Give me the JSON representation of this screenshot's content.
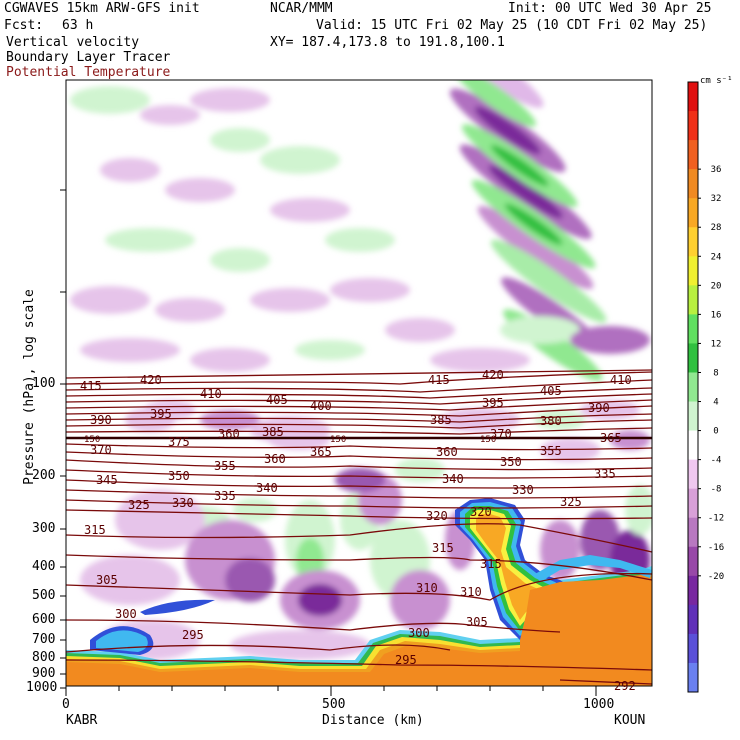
{
  "header": {
    "model": "CGWAVES 15km ARW-GFS init",
    "org": "NCAR/MMM",
    "init": "Init: 00 UTC Wed 30 Apr 25",
    "fcst_label": "Fcst:",
    "fcst_value": "63 h",
    "valid": "Valid: 15 UTC Fri 02 May 25 (10 CDT Fri 02 May 25)",
    "field1": "Vertical velocity",
    "field2": "Boundary Layer Tracer",
    "field3": "Potential Temperature",
    "xy": "XY= 187.4,173.8 to 191.8,100.1"
  },
  "colors": {
    "theta": "#7a0a0a",
    "field3_text": "#8b1a1a"
  },
  "chart_data": {
    "type": "heatmap",
    "title": "Vertical velocity",
    "xlabel": "Distance (km)",
    "ylabel": "Pressure (hPa), log scale",
    "x_ticks": [
      0,
      500,
      1000
    ],
    "xlim": [
      0,
      1100
    ],
    "y_ticks": [
      100,
      200,
      300,
      400,
      500,
      600,
      700,
      800,
      900,
      1000
    ],
    "ylim": [
      1000,
      10
    ],
    "y_scale": "log",
    "x_endpoints": {
      "left": "KABR",
      "right": "KOUN"
    },
    "colorbar": {
      "unit": "cm s⁻¹",
      "labels": [
        36,
        32,
        28,
        24,
        20,
        16,
        12,
        8,
        4,
        0,
        -4,
        -8,
        -12,
        -16,
        -20
      ],
      "colors": [
        "#e01010",
        "#f03018",
        "#f06020",
        "#f08a22",
        "#f8a824",
        "#ffd030",
        "#f0f030",
        "#b8f040",
        "#60e060",
        "#30c040",
        "#90e890",
        "#d0f4d0",
        "#ffffff",
        "#f0c8f0",
        "#d8a0d8",
        "#b878c0",
        "#9848a8",
        "#7828a0",
        "#6030b8",
        "#5a50d8",
        "#6a80f0"
      ]
    },
    "theta_contours": {
      "label": "Potential Temperature",
      "levels": [
        292,
        295,
        300,
        305,
        310,
        315,
        320,
        325,
        330,
        335,
        340,
        345,
        350,
        355,
        360,
        365,
        370,
        375,
        380,
        385,
        390,
        395,
        400,
        405,
        410,
        415,
        420
      ],
      "tropopause_level_labels": [
        150,
        150,
        150
      ]
    }
  }
}
